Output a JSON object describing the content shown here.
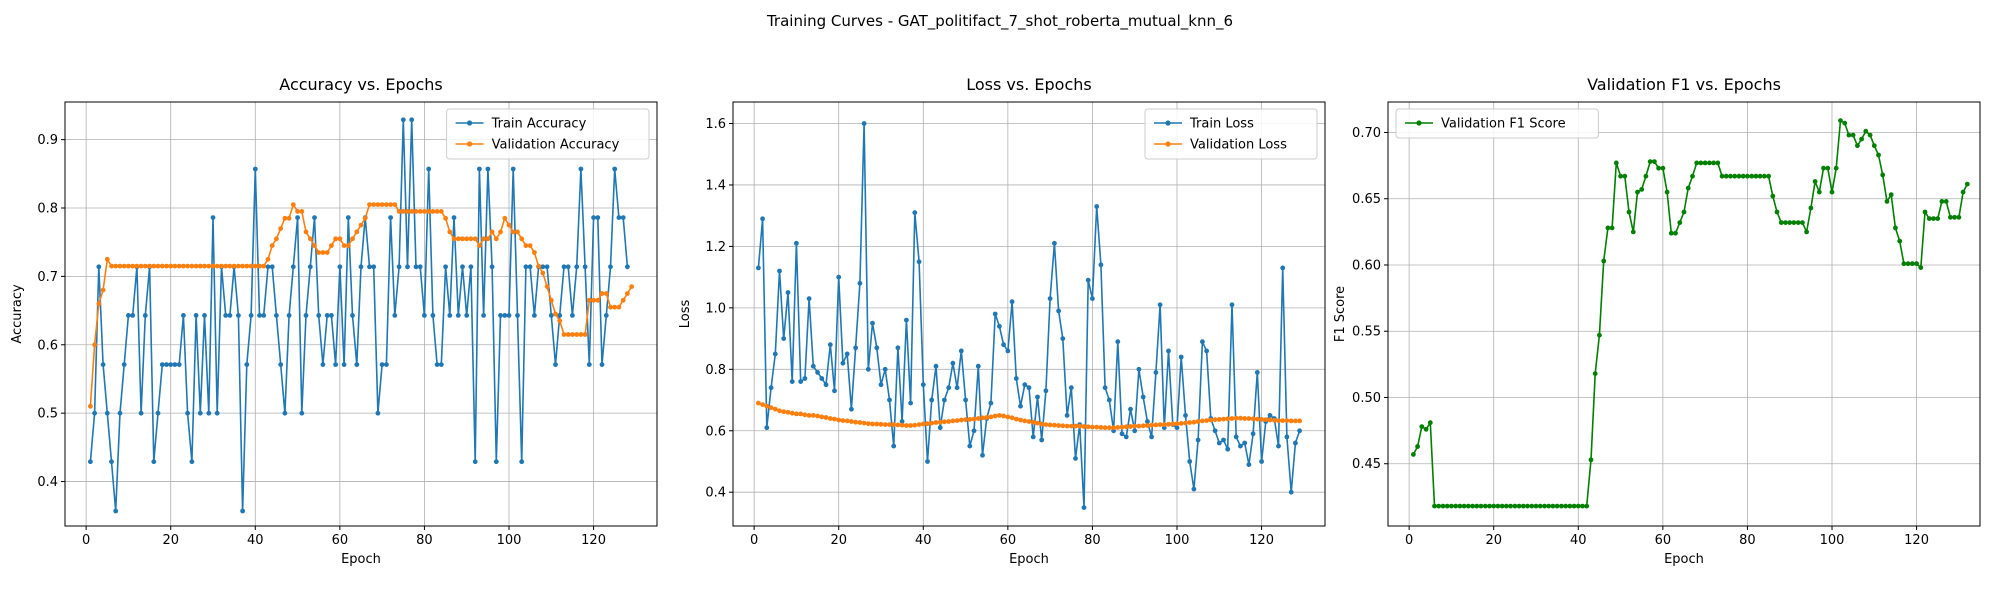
{
  "suptitle": "Training Curves - GAT_politifact_7_shot_roberta_mutual_knn_6",
  "colors": {
    "train": "#1f77b4",
    "val": "#ff7f0e",
    "f1": "#008000",
    "grid": "#b0b0b0"
  },
  "chart_data": [
    {
      "type": "line",
      "title": "Accuracy vs. Epochs",
      "xlabel": "Epoch",
      "ylabel": "Accuracy",
      "xlim": [
        -5,
        135
      ],
      "ylim": [
        0.335,
        0.955
      ],
      "xticks": [
        0,
        20,
        40,
        60,
        80,
        100,
        120
      ],
      "yticks": [
        0.4,
        0.5,
        0.6,
        0.7,
        0.8,
        0.9
      ],
      "ytick_labels": [
        "0.4",
        "0.5",
        "0.6",
        "0.7",
        "0.8",
        "0.9"
      ],
      "grid": true,
      "legend_loc": "upper-right",
      "series": [
        {
          "name": "Train Accuracy",
          "color": "#1f77b4",
          "x_start": 1,
          "values": [
            0.429,
            0.5,
            0.714,
            0.571,
            0.5,
            0.429,
            0.357,
            0.5,
            0.571,
            0.643,
            0.643,
            0.714,
            0.5,
            0.643,
            0.714,
            0.429,
            0.5,
            0.571,
            0.571,
            0.571,
            0.571,
            0.571,
            0.643,
            0.5,
            0.429,
            0.643,
            0.5,
            0.643,
            0.5,
            0.786,
            0.5,
            0.714,
            0.643,
            0.643,
            0.714,
            0.643,
            0.357,
            0.571,
            0.643,
            0.857,
            0.643,
            0.643,
            0.714,
            0.714,
            0.643,
            0.571,
            0.5,
            0.643,
            0.714,
            0.786,
            0.5,
            0.643,
            0.714,
            0.786,
            0.643,
            0.571,
            0.643,
            0.643,
            0.571,
            0.714,
            0.571,
            0.786,
            0.643,
            0.571,
            0.714,
            0.786,
            0.714,
            0.714,
            0.5,
            0.571,
            0.571,
            0.786,
            0.643,
            0.714,
            0.929,
            0.714,
            0.929,
            0.714,
            0.714,
            0.643,
            0.857,
            0.643,
            0.571,
            0.571,
            0.714,
            0.643,
            0.786,
            0.643,
            0.714,
            0.643,
            0.714,
            0.429,
            0.857,
            0.643,
            0.857,
            0.714,
            0.429,
            0.643,
            0.643,
            0.643,
            0.857,
            0.643,
            0.429,
            0.714,
            0.714,
            0.643,
            0.714,
            0.714,
            0.714,
            0.643,
            0.571,
            0.643,
            0.714,
            0.714,
            0.643,
            0.714,
            0.857,
            0.714,
            0.571,
            0.786,
            0.786,
            0.571,
            0.643,
            0.714,
            0.857,
            0.786,
            0.786,
            0.714
          ]
        },
        {
          "name": "Validation Accuracy",
          "color": "#ff7f0e",
          "x_start": 1,
          "values": [
            0.51,
            0.6,
            0.66,
            0.68,
            0.725,
            0.715,
            0.715,
            0.715,
            0.715,
            0.715,
            0.715,
            0.715,
            0.715,
            0.715,
            0.715,
            0.715,
            0.715,
            0.715,
            0.715,
            0.715,
            0.715,
            0.715,
            0.715,
            0.715,
            0.715,
            0.715,
            0.715,
            0.715,
            0.715,
            0.715,
            0.715,
            0.715,
            0.715,
            0.715,
            0.715,
            0.715,
            0.715,
            0.715,
            0.715,
            0.715,
            0.715,
            0.715,
            0.725,
            0.745,
            0.755,
            0.77,
            0.785,
            0.785,
            0.805,
            0.795,
            0.795,
            0.765,
            0.755,
            0.745,
            0.735,
            0.735,
            0.735,
            0.745,
            0.755,
            0.755,
            0.745,
            0.745,
            0.755,
            0.765,
            0.775,
            0.785,
            0.805,
            0.805,
            0.805,
            0.805,
            0.805,
            0.805,
            0.805,
            0.795,
            0.795,
            0.795,
            0.795,
            0.795,
            0.795,
            0.795,
            0.795,
            0.795,
            0.795,
            0.795,
            0.785,
            0.765,
            0.755,
            0.755,
            0.755,
            0.755,
            0.755,
            0.755,
            0.745,
            0.755,
            0.755,
            0.765,
            0.755,
            0.765,
            0.785,
            0.775,
            0.765,
            0.765,
            0.755,
            0.745,
            0.745,
            0.735,
            0.715,
            0.705,
            0.685,
            0.665,
            0.645,
            0.635,
            0.615,
            0.615,
            0.615,
            0.615,
            0.615,
            0.615,
            0.665,
            0.665,
            0.665,
            0.675,
            0.675,
            0.655,
            0.655,
            0.655,
            0.665,
            0.675,
            0.685
          ]
        }
      ]
    },
    {
      "type": "line",
      "title": "Loss vs. Epochs",
      "xlabel": "Epoch",
      "ylabel": "Loss",
      "xlim": [
        -5,
        135
      ],
      "ylim": [
        0.29,
        1.67
      ],
      "xticks": [
        0,
        20,
        40,
        60,
        80,
        100,
        120
      ],
      "yticks": [
        0.4,
        0.6,
        0.8,
        1.0,
        1.2,
        1.4,
        1.6
      ],
      "ytick_labels": [
        "0.4",
        "0.6",
        "0.8",
        "1.0",
        "1.2",
        "1.4",
        "1.6"
      ],
      "grid": true,
      "legend_loc": "upper-right",
      "series": [
        {
          "name": "Train Loss",
          "color": "#1f77b4",
          "x_start": 1,
          "values": [
            1.13,
            1.29,
            0.61,
            0.74,
            0.85,
            1.12,
            0.9,
            1.05,
            0.76,
            1.21,
            0.76,
            0.77,
            1.03,
            0.81,
            0.79,
            0.77,
            0.75,
            0.88,
            0.73,
            1.1,
            0.82,
            0.85,
            0.67,
            0.87,
            1.08,
            1.6,
            0.8,
            0.95,
            0.87,
            0.75,
            0.8,
            0.7,
            0.55,
            0.87,
            0.63,
            0.96,
            0.69,
            1.31,
            1.15,
            0.75,
            0.5,
            0.7,
            0.81,
            0.61,
            0.7,
            0.74,
            0.82,
            0.74,
            0.86,
            0.7,
            0.55,
            0.6,
            0.81,
            0.52,
            0.64,
            0.69,
            0.98,
            0.94,
            0.88,
            0.86,
            1.02,
            0.77,
            0.68,
            0.75,
            0.74,
            0.58,
            0.71,
            0.57,
            0.73,
            1.03,
            1.21,
            0.99,
            0.9,
            0.65,
            0.74,
            0.51,
            0.62,
            0.35,
            1.09,
            1.03,
            1.33,
            1.14,
            0.74,
            0.7,
            0.6,
            0.89,
            0.59,
            0.58,
            0.67,
            0.6,
            0.8,
            0.71,
            0.63,
            0.58,
            0.79,
            1.01,
            0.61,
            0.86,
            0.62,
            0.61,
            0.84,
            0.65,
            0.5,
            0.41,
            0.57,
            0.89,
            0.86,
            0.64,
            0.6,
            0.56,
            0.57,
            0.54,
            1.01,
            0.58,
            0.55,
            0.56,
            0.49,
            0.59,
            0.79,
            0.5,
            0.63,
            0.65,
            0.64,
            0.55,
            1.13,
            0.58,
            0.4,
            0.56,
            0.6
          ]
        },
        {
          "name": "Validation Loss",
          "color": "#ff7f0e",
          "x_start": 1,
          "values": [
            0.69,
            0.685,
            0.68,
            0.675,
            0.67,
            0.665,
            0.662,
            0.66,
            0.657,
            0.655,
            0.655,
            0.652,
            0.65,
            0.65,
            0.648,
            0.645,
            0.643,
            0.64,
            0.638,
            0.635,
            0.633,
            0.632,
            0.63,
            0.628,
            0.627,
            0.625,
            0.623,
            0.622,
            0.622,
            0.621,
            0.62,
            0.62,
            0.62,
            0.619,
            0.618,
            0.617,
            0.617,
            0.618,
            0.62,
            0.622,
            0.623,
            0.625,
            0.627,
            0.628,
            0.629,
            0.63,
            0.632,
            0.633,
            0.635,
            0.636,
            0.637,
            0.638,
            0.64,
            0.642,
            0.643,
            0.645,
            0.648,
            0.65,
            0.648,
            0.645,
            0.642,
            0.638,
            0.635,
            0.632,
            0.63,
            0.628,
            0.625,
            0.622,
            0.62,
            0.619,
            0.618,
            0.617,
            0.616,
            0.615,
            0.615,
            0.615,
            0.615,
            0.614,
            0.613,
            0.612,
            0.612,
            0.611,
            0.61,
            0.61,
            0.61,
            0.611,
            0.612,
            0.613,
            0.614,
            0.615,
            0.615,
            0.616,
            0.617,
            0.618,
            0.619,
            0.62,
            0.62,
            0.621,
            0.622,
            0.623,
            0.624,
            0.625,
            0.627,
            0.628,
            0.63,
            0.632,
            0.633,
            0.635,
            0.636,
            0.637,
            0.638,
            0.639,
            0.64,
            0.641,
            0.641,
            0.64,
            0.64,
            0.639,
            0.638,
            0.637,
            0.636,
            0.635,
            0.634,
            0.633,
            0.633,
            0.633,
            0.632,
            0.632,
            0.632
          ]
        }
      ]
    },
    {
      "type": "line",
      "title": "Validation F1 vs. Epochs",
      "xlabel": "Epoch",
      "ylabel": "F1 Score",
      "xlim": [
        -5,
        135
      ],
      "ylim": [
        0.403,
        0.723
      ],
      "xticks": [
        0,
        20,
        40,
        60,
        80,
        100,
        120
      ],
      "yticks": [
        0.45,
        0.5,
        0.55,
        0.6,
        0.65,
        0.7
      ],
      "ytick_labels": [
        "0.45",
        "0.50",
        "0.55",
        "0.60",
        "0.65",
        "0.70"
      ],
      "grid": true,
      "legend_loc": "upper-left",
      "series": [
        {
          "name": "Validation F1 Score",
          "color": "#008000",
          "x_start": 1,
          "values": [
            0.457,
            0.463,
            0.478,
            0.476,
            0.481,
            0.418,
            0.418,
            0.418,
            0.418,
            0.418,
            0.418,
            0.418,
            0.418,
            0.418,
            0.418,
            0.418,
            0.418,
            0.418,
            0.418,
            0.418,
            0.418,
            0.418,
            0.418,
            0.418,
            0.418,
            0.418,
            0.418,
            0.418,
            0.418,
            0.418,
            0.418,
            0.418,
            0.418,
            0.418,
            0.418,
            0.418,
            0.418,
            0.418,
            0.418,
            0.418,
            0.418,
            0.418,
            0.453,
            0.518,
            0.547,
            0.603,
            0.628,
            0.628,
            0.677,
            0.667,
            0.667,
            0.64,
            0.625,
            0.655,
            0.657,
            0.667,
            0.678,
            0.678,
            0.673,
            0.673,
            0.655,
            0.624,
            0.624,
            0.632,
            0.64,
            0.658,
            0.667,
            0.677,
            0.677,
            0.677,
            0.677,
            0.677,
            0.677,
            0.667,
            0.667,
            0.667,
            0.667,
            0.667,
            0.667,
            0.667,
            0.667,
            0.667,
            0.667,
            0.667,
            0.667,
            0.652,
            0.64,
            0.632,
            0.632,
            0.632,
            0.632,
            0.632,
            0.632,
            0.625,
            0.643,
            0.663,
            0.655,
            0.673,
            0.673,
            0.655,
            0.673,
            0.709,
            0.707,
            0.698,
            0.698,
            0.69,
            0.695,
            0.701,
            0.698,
            0.69,
            0.683,
            0.668,
            0.648,
            0.653,
            0.628,
            0.618,
            0.601,
            0.601,
            0.601,
            0.601,
            0.598,
            0.64,
            0.635,
            0.635,
            0.635,
            0.648,
            0.648,
            0.636,
            0.636,
            0.636,
            0.655,
            0.661
          ]
        }
      ]
    }
  ]
}
